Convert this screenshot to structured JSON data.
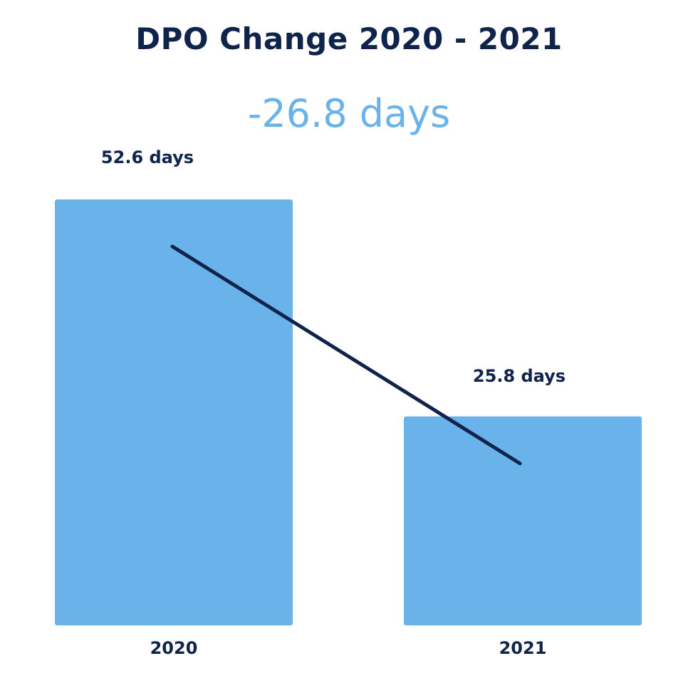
{
  "chart_data": {
    "type": "bar",
    "title": "DPO Change 2020 - 2021",
    "subtitle": "-26.8 days",
    "categories": [
      "2020",
      "2021"
    ],
    "values": [
      52.6,
      25.8
    ],
    "value_labels": [
      "52.6 days",
      "25.8 days"
    ],
    "ylim": [
      0,
      52.6
    ],
    "grid": false,
    "trend_line": true,
    "colors": {
      "bar": "#69b3ea",
      "text": "#10234a",
      "accent": "#69b3ea",
      "trend": "#10234a"
    }
  }
}
